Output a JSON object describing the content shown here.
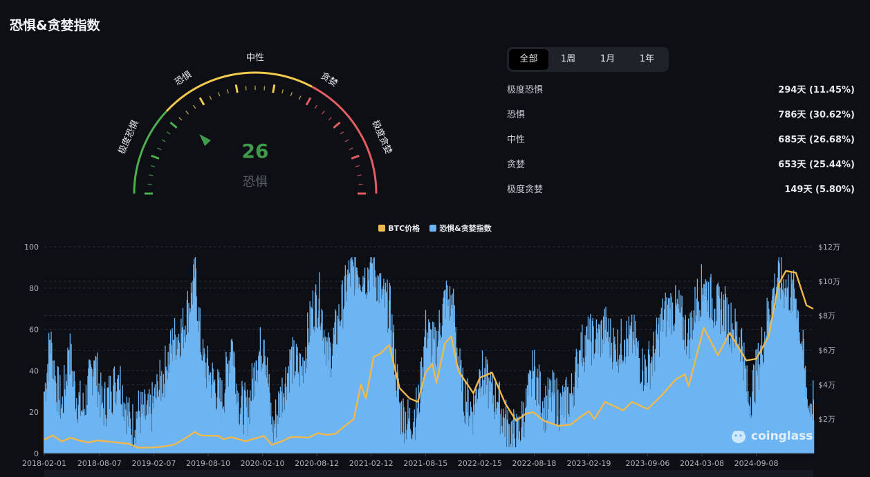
{
  "page": {
    "title": "恐惧&贪婪指数"
  },
  "gauge": {
    "value": 26,
    "status": "恐惧",
    "zones": [
      "极度恐惧",
      "恐惧",
      "中性",
      "贪婪",
      "极度贪婪"
    ],
    "colors": {
      "fear": "#4caf50",
      "neutral": "#f3c94e",
      "greed": "#e35d63",
      "value_text": "#3f9a4a",
      "status_text": "#5a5f69"
    }
  },
  "tabs": [
    {
      "label": "全部",
      "active": true
    },
    {
      "label": "1周",
      "active": false
    },
    {
      "label": "1月",
      "active": false
    },
    {
      "label": "1年",
      "active": false
    }
  ],
  "stats": [
    {
      "label": "极度恐惧",
      "value": "294天 (11.45%)"
    },
    {
      "label": "恐惧",
      "value": "786天 (30.62%)"
    },
    {
      "label": "中性",
      "value": "685天 (26.68%)"
    },
    {
      "label": "贪婪",
      "value": "653天 (25.44%)"
    },
    {
      "label": "极度贪婪",
      "value": "149天 (5.80%)"
    }
  ],
  "watermark": {
    "text": "coinglass"
  },
  "chart_data": {
    "type": "bar+line",
    "colors": {
      "index": "#6cb4f2",
      "price": "#f0b94d"
    },
    "legend": [
      "BTC价格",
      "恐惧&贪婪指数"
    ],
    "legend_position": "top-center",
    "xlim": [
      "2018-02-01",
      "2025-03-20"
    ],
    "x_ticks": [
      "2018-02-01",
      "2018-08-07",
      "2019-02-07",
      "2019-08-10",
      "2020-02-10",
      "2020-08-12",
      "2021-02-12",
      "2021-08-15",
      "2022-02-15",
      "2022-08-18",
      "2023-02-19",
      "2023-09-06",
      "2024-03-08",
      "2024-09-08"
    ],
    "y_left": {
      "ylim": [
        0,
        100
      ],
      "ticks": [
        "0",
        "20",
        "40",
        "60",
        "80",
        "100"
      ]
    },
    "y_right": {
      "ylim": [
        0,
        120000
      ],
      "ticks": [
        "$2万",
        "$4万",
        "$6万",
        "$8万",
        "$10万",
        "$12万"
      ],
      "tick_values": [
        20000,
        40000,
        60000,
        80000,
        100000,
        120000
      ]
    },
    "grid": true,
    "fear_greed_index": [
      [
        "2018-02-01",
        30
      ],
      [
        "2018-02-20",
        55
      ],
      [
        "2018-03-10",
        35
      ],
      [
        "2018-04-01",
        22
      ],
      [
        "2018-04-25",
        50
      ],
      [
        "2018-05-15",
        30
      ],
      [
        "2018-06-10",
        20
      ],
      [
        "2018-07-20",
        45
      ],
      [
        "2018-08-15",
        22
      ],
      [
        "2018-09-15",
        30
      ],
      [
        "2018-10-10",
        38
      ],
      [
        "2018-11-20",
        12
      ],
      [
        "2018-12-15",
        20
      ],
      [
        "2019-01-20",
        18
      ],
      [
        "2019-02-20",
        30
      ],
      [
        "2019-03-20",
        42
      ],
      [
        "2019-04-15",
        55
      ],
      [
        "2019-05-15",
        60
      ],
      [
        "2019-06-26",
        85
      ],
      [
        "2019-07-20",
        45
      ],
      [
        "2019-08-15",
        38
      ],
      [
        "2019-09-25",
        25
      ],
      [
        "2019-10-28",
        55
      ],
      [
        "2019-11-20",
        25
      ],
      [
        "2019-12-20",
        20
      ],
      [
        "2020-01-20",
        45
      ],
      [
        "2020-02-15",
        55
      ],
      [
        "2020-03-13",
        10
      ],
      [
        "2020-04-15",
        30
      ],
      [
        "2020-05-15",
        45
      ],
      [
        "2020-06-20",
        40
      ],
      [
        "2020-07-28",
        70
      ],
      [
        "2020-08-20",
        75
      ],
      [
        "2020-09-20",
        45
      ],
      [
        "2020-10-25",
        65
      ],
      [
        "2020-11-25",
        85
      ],
      [
        "2020-12-25",
        90
      ],
      [
        "2021-01-20",
        85
      ],
      [
        "2021-02-15",
        92
      ],
      [
        "2021-03-20",
        75
      ],
      [
        "2021-04-15",
        70
      ],
      [
        "2021-05-20",
        20
      ],
      [
        "2021-06-20",
        15
      ],
      [
        "2021-07-20",
        22
      ],
      [
        "2021-08-15",
        60
      ],
      [
        "2021-09-15",
        50
      ],
      [
        "2021-10-20",
        75
      ],
      [
        "2021-11-15",
        70
      ],
      [
        "2021-12-15",
        30
      ],
      [
        "2022-01-20",
        20
      ],
      [
        "2022-02-15",
        40
      ],
      [
        "2022-03-20",
        30
      ],
      [
        "2022-04-15",
        25
      ],
      [
        "2022-05-20",
        12
      ],
      [
        "2022-06-20",
        8
      ],
      [
        "2022-07-20",
        22
      ],
      [
        "2022-08-15",
        40
      ],
      [
        "2022-09-20",
        22
      ],
      [
        "2022-10-20",
        28
      ],
      [
        "2022-11-15",
        22
      ],
      [
        "2022-12-20",
        28
      ],
      [
        "2023-01-20",
        50
      ],
      [
        "2023-02-20",
        55
      ],
      [
        "2023-03-20",
        55
      ],
      [
        "2023-04-15",
        60
      ],
      [
        "2023-05-20",
        50
      ],
      [
        "2023-06-20",
        55
      ],
      [
        "2023-07-20",
        55
      ],
      [
        "2023-08-20",
        40
      ],
      [
        "2023-09-20",
        45
      ],
      [
        "2023-10-25",
        65
      ],
      [
        "2023-11-20",
        70
      ],
      [
        "2023-12-20",
        68
      ],
      [
        "2024-01-20",
        55
      ],
      [
        "2024-02-20",
        75
      ],
      [
        "2024-03-15",
        82
      ],
      [
        "2024-04-20",
        70
      ],
      [
        "2024-05-20",
        70
      ],
      [
        "2024-06-20",
        60
      ],
      [
        "2024-07-20",
        55
      ],
      [
        "2024-08-10",
        25
      ],
      [
        "2024-09-10",
        40
      ],
      [
        "2024-10-20",
        70
      ],
      [
        "2024-11-20",
        85
      ],
      [
        "2024-12-15",
        80
      ],
      [
        "2025-01-20",
        75
      ],
      [
        "2025-02-10",
        50
      ],
      [
        "2025-03-01",
        22
      ],
      [
        "2025-03-20",
        26
      ]
    ],
    "btc_price": [
      [
        "2018-02-01",
        8000
      ],
      [
        "2018-03-01",
        10500
      ],
      [
        "2018-04-01",
        7000
      ],
      [
        "2018-05-01",
        9200
      ],
      [
        "2018-06-01",
        7500
      ],
      [
        "2018-07-01",
        6400
      ],
      [
        "2018-08-01",
        7600
      ],
      [
        "2018-09-01",
        7000
      ],
      [
        "2018-10-01",
        6500
      ],
      [
        "2018-11-15",
        5600
      ],
      [
        "2018-12-15",
        3400
      ],
      [
        "2019-02-01",
        3500
      ],
      [
        "2019-03-01",
        3800
      ],
      [
        "2019-04-15",
        5000
      ],
      [
        "2019-05-15",
        7800
      ],
      [
        "2019-06-26",
        12500
      ],
      [
        "2019-07-15",
        10500
      ],
      [
        "2019-08-15",
        10300
      ],
      [
        "2019-09-15",
        10200
      ],
      [
        "2019-10-01",
        8300
      ],
      [
        "2019-10-28",
        9500
      ],
      [
        "2019-12-15",
        7100
      ],
      [
        "2020-01-15",
        8700
      ],
      [
        "2020-02-15",
        10200
      ],
      [
        "2020-03-13",
        5000
      ],
      [
        "2020-04-15",
        7000
      ],
      [
        "2020-05-15",
        9500
      ],
      [
        "2020-06-15",
        9500
      ],
      [
        "2020-07-15",
        9200
      ],
      [
        "2020-08-15",
        11800
      ],
      [
        "2020-09-15",
        10800
      ],
      [
        "2020-10-15",
        11500
      ],
      [
        "2020-11-15",
        16000
      ],
      [
        "2020-12-15",
        20000
      ],
      [
        "2021-01-08",
        40000
      ],
      [
        "2021-01-25",
        32000
      ],
      [
        "2021-02-20",
        56000
      ],
      [
        "2021-03-15",
        58000
      ],
      [
        "2021-04-14",
        63000
      ],
      [
        "2021-05-19",
        38000
      ],
      [
        "2021-06-22",
        32000
      ],
      [
        "2021-07-20",
        30000
      ],
      [
        "2021-08-15",
        47000
      ],
      [
        "2021-09-07",
        52000
      ],
      [
        "2021-09-21",
        41000
      ],
      [
        "2021-10-20",
        64000
      ],
      [
        "2021-11-10",
        68000
      ],
      [
        "2021-12-04",
        48000
      ],
      [
        "2022-01-24",
        35000
      ],
      [
        "2022-02-15",
        44000
      ],
      [
        "2022-03-28",
        47000
      ],
      [
        "2022-05-12",
        29000
      ],
      [
        "2022-06-18",
        19000
      ],
      [
        "2022-07-20",
        23000
      ],
      [
        "2022-08-15",
        24000
      ],
      [
        "2022-09-20",
        19000
      ],
      [
        "2022-11-09",
        16000
      ],
      [
        "2022-12-20",
        16800
      ],
      [
        "2023-01-20",
        21000
      ],
      [
        "2023-02-19",
        24500
      ],
      [
        "2023-03-10",
        20000
      ],
      [
        "2023-04-15",
        30000
      ],
      [
        "2023-06-15",
        25000
      ],
      [
        "2023-07-15",
        30000
      ],
      [
        "2023-09-06",
        25800
      ],
      [
        "2023-10-25",
        34000
      ],
      [
        "2023-12-10",
        43000
      ],
      [
        "2024-01-10",
        46000
      ],
      [
        "2024-01-23",
        39000
      ],
      [
        "2024-03-14",
        73000
      ],
      [
        "2024-05-01",
        57000
      ],
      [
        "2024-06-10",
        70000
      ],
      [
        "2024-08-05",
        54000
      ],
      [
        "2024-09-08",
        55000
      ],
      [
        "2024-10-20",
        68000
      ],
      [
        "2024-11-22",
        98000
      ],
      [
        "2024-12-17",
        106000
      ],
      [
        "2025-01-20",
        105000
      ],
      [
        "2025-02-25",
        86000
      ],
      [
        "2025-03-20",
        84000
      ]
    ]
  }
}
